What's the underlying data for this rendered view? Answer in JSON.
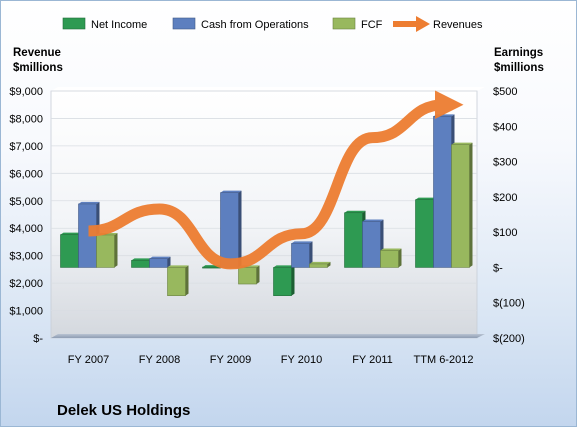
{
  "chart_data": {
    "type": "bar",
    "title": "Delek US Holdings",
    "categories": [
      "FY 2007",
      "FY 2008",
      "FY 2009",
      "FY 2010",
      "FY 2011",
      "TTM 6-2012"
    ],
    "left_axis": {
      "label_line1": "Revenue",
      "label_line2": "$millions",
      "min": 0,
      "max": 9000,
      "step": 1000,
      "tick_labels": [
        "$-",
        "$1,000",
        "$2,000",
        "$3,000",
        "$4,000",
        "$5,000",
        "$6,000",
        "$7,000",
        "$8,000",
        "$9,000"
      ]
    },
    "right_axis": {
      "label_line1": "Earnings",
      "label_line2": "$millions",
      "min": -200,
      "max": 500,
      "step": 100,
      "tick_labels": [
        "$(200)",
        "$(100)",
        "$-",
        "$100",
        "$200",
        "$300",
        "$400",
        "$500"
      ]
    },
    "series": [
      {
        "name": "Net Income",
        "axis": "right",
        "kind": "bar",
        "color": "#2e9a52",
        "values": [
          93,
          20,
          1,
          -80,
          155,
          192
        ]
      },
      {
        "name": "Cash from Operations",
        "axis": "right",
        "kind": "bar",
        "color": "#5d7fbf",
        "values": [
          180,
          25,
          212,
          68,
          130,
          428
        ]
      },
      {
        "name": "FCF",
        "axis": "right",
        "kind": "bar",
        "color": "#98b85e",
        "values": [
          92,
          -80,
          -47,
          10,
          48,
          348
        ]
      },
      {
        "name": "Revenues",
        "axis": "left",
        "kind": "arrow-line",
        "color": "#ed7d31",
        "values": [
          3900,
          4700,
          2700,
          3800,
          7300,
          8500
        ]
      }
    ],
    "legend_position": "top",
    "grid": true
  }
}
